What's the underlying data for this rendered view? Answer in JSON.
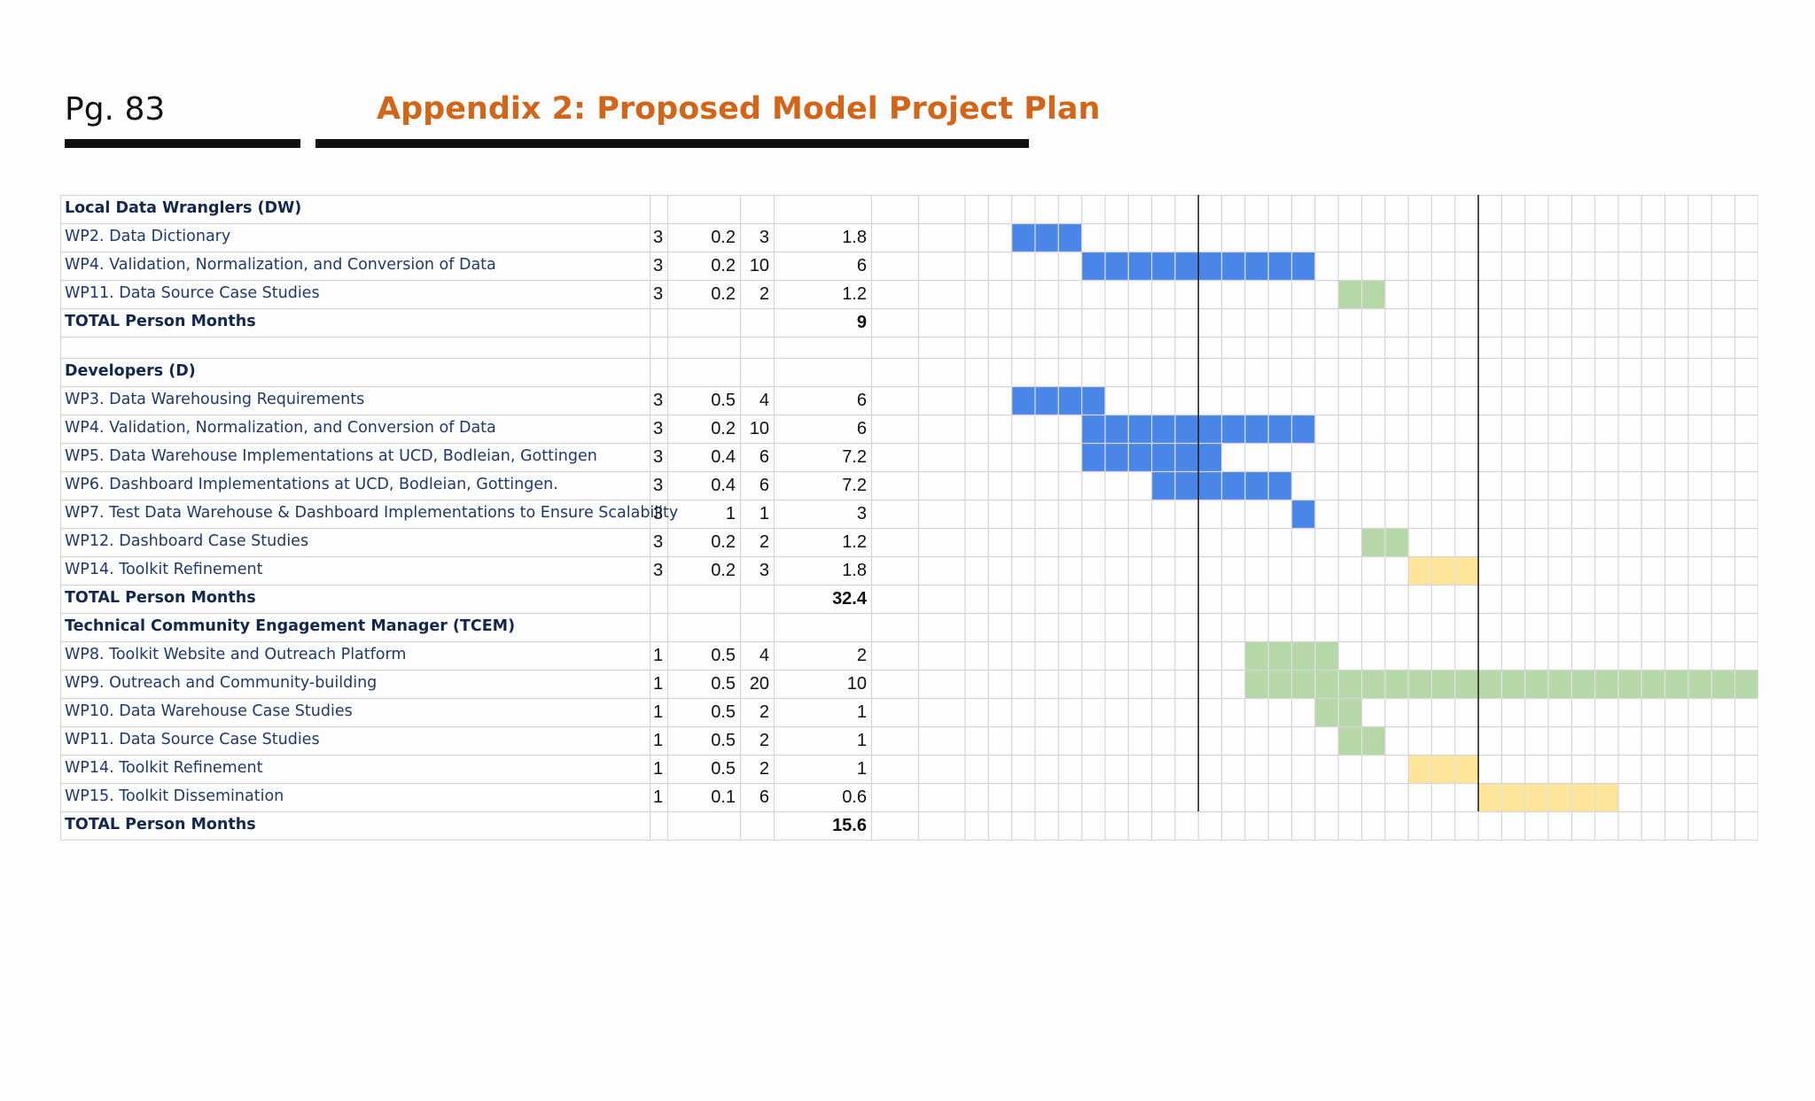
{
  "header": {
    "page_label": "Pg. 83",
    "title": "Appendix 2: Proposed Model Project Plan"
  },
  "colors": {
    "title": "#d1661a",
    "bar_blue": "#4a86e8",
    "bar_green": "#b6d7a8",
    "bar_yellow": "#ffe599",
    "grid": "#d5d5d8",
    "marker_line": "#222222"
  },
  "chart_data": {
    "type": "table",
    "gantt_periods": 34,
    "gantt_marker_periods": [
      10,
      22
    ],
    "rows": [
      {
        "kind": "header",
        "task": "Local Data Wranglers (DW)"
      },
      {
        "kind": "task",
        "task": "WP2. Data Dictionary",
        "c1": "3",
        "c2": "0.2",
        "c3": "3",
        "pm": "1.8",
        "bars": [
          {
            "start": 2,
            "len": 3,
            "color": "blue"
          }
        ]
      },
      {
        "kind": "task",
        "task": "WP4. Validation, Normalization, and Conversion of Data",
        "c1": "3",
        "c2": "0.2",
        "c3": "10",
        "pm": "6",
        "bars": [
          {
            "start": 5,
            "len": 10,
            "color": "blue"
          }
        ]
      },
      {
        "kind": "task",
        "task": "WP11. Data Source Case Studies",
        "c1": "3",
        "c2": "0.2",
        "c3": "2",
        "pm": "1.2",
        "bars": [
          {
            "start": 16,
            "len": 2,
            "color": "green"
          }
        ]
      },
      {
        "kind": "total",
        "task": "TOTAL Person Months",
        "pm": "9"
      },
      {
        "kind": "blank"
      },
      {
        "kind": "header",
        "task": "Developers (D)"
      },
      {
        "kind": "task",
        "task": "WP3. Data Warehousing Requirements",
        "c1": "3",
        "c2": "0.5",
        "c3": "4",
        "pm": "6",
        "bars": [
          {
            "start": 2,
            "len": 4,
            "color": "blue"
          }
        ]
      },
      {
        "kind": "task",
        "task": "WP4. Validation, Normalization, and Conversion of Data",
        "c1": "3",
        "c2": "0.2",
        "c3": "10",
        "pm": "6",
        "bars": [
          {
            "start": 5,
            "len": 10,
            "color": "blue"
          }
        ]
      },
      {
        "kind": "task",
        "task": "WP5. Data Warehouse Implementations at UCD, Bodleian, Gottingen",
        "c1": "3",
        "c2": "0.4",
        "c3": "6",
        "pm": "7.2",
        "bars": [
          {
            "start": 5,
            "len": 6,
            "color": "blue"
          }
        ]
      },
      {
        "kind": "task",
        "task": "WP6. Dashboard Implementations at UCD, Bodleian, Gottingen.",
        "c1": "3",
        "c2": "0.4",
        "c3": "6",
        "pm": "7.2",
        "bars": [
          {
            "start": 8,
            "len": 6,
            "color": "blue"
          }
        ]
      },
      {
        "kind": "task",
        "task": "WP7. Test Data Warehouse & Dashboard Implementations to Ensure Scalability",
        "c1": "3",
        "c2": "1",
        "c3": "1",
        "pm": "3",
        "bars": [
          {
            "start": 14,
            "len": 1,
            "color": "blue"
          }
        ]
      },
      {
        "kind": "task",
        "task": "WP12. Dashboard Case Studies",
        "c1": "3",
        "c2": "0.2",
        "c3": "2",
        "pm": "1.2",
        "bars": [
          {
            "start": 17,
            "len": 2,
            "color": "green"
          }
        ]
      },
      {
        "kind": "task",
        "task": "WP14. Toolkit Refinement",
        "c1": "3",
        "c2": "0.2",
        "c3": "3",
        "pm": "1.8",
        "bars": [
          {
            "start": 19,
            "len": 3,
            "color": "yellow"
          }
        ]
      },
      {
        "kind": "total",
        "task": "TOTAL Person Months",
        "pm": "32.4"
      },
      {
        "kind": "header",
        "task": "Technical Community Engagement Manager (TCEM)"
      },
      {
        "kind": "task",
        "task": "WP8. Toolkit Website and Outreach Platform",
        "c1": "1",
        "c2": "0.5",
        "c3": "4",
        "pm": "2",
        "bars": [
          {
            "start": 12,
            "len": 4,
            "color": "green"
          }
        ]
      },
      {
        "kind": "task",
        "task": "WP9. Outreach and Community-building",
        "c1": "1",
        "c2": "0.5",
        "c3": "20",
        "pm": "10",
        "bars": [
          {
            "start": 12,
            "len": 22,
            "color": "green"
          }
        ]
      },
      {
        "kind": "task",
        "task": "WP10. Data Warehouse Case Studies",
        "c1": "1",
        "c2": "0.5",
        "c3": "2",
        "pm": "1",
        "bars": [
          {
            "start": 15,
            "len": 2,
            "color": "green"
          }
        ]
      },
      {
        "kind": "task",
        "task": "WP11. Data Source Case Studies",
        "c1": "1",
        "c2": "0.5",
        "c3": "2",
        "pm": "1",
        "bars": [
          {
            "start": 16,
            "len": 2,
            "color": "green"
          }
        ]
      },
      {
        "kind": "task",
        "task": "WP14. Toolkit Refinement",
        "c1": "1",
        "c2": "0.5",
        "c3": "2",
        "pm": "1",
        "bars": [
          {
            "start": 19,
            "len": 3,
            "color": "yellow"
          }
        ]
      },
      {
        "kind": "task",
        "task": "WP15. Toolkit Dissemination",
        "c1": "1",
        "c2": "0.1",
        "c3": "6",
        "pm": "0.6",
        "bars": [
          {
            "start": 22,
            "len": 6,
            "color": "yellow"
          }
        ]
      },
      {
        "kind": "total",
        "task": "TOTAL Person Months",
        "pm": "15.6"
      }
    ]
  }
}
